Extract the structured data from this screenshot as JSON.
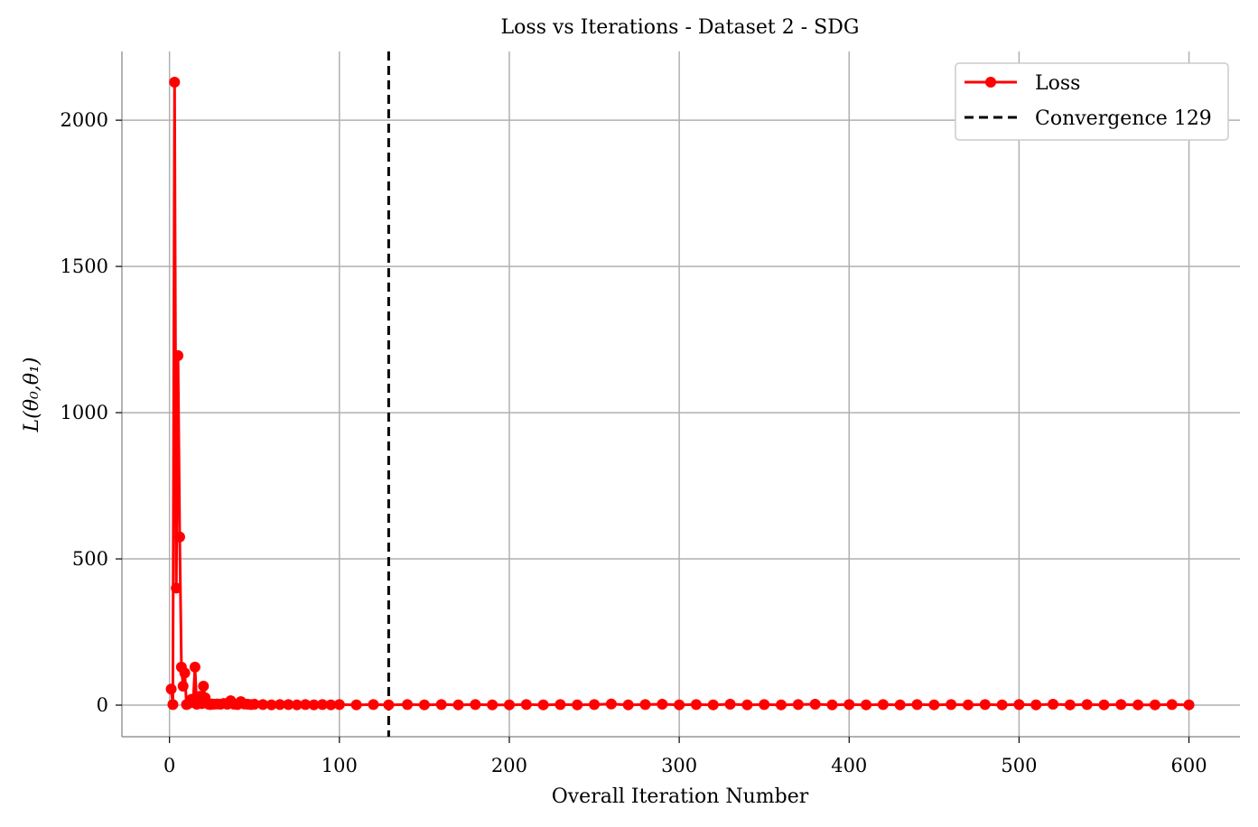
{
  "chart_data": {
    "type": "line",
    "title": "Loss vs Iterations - Dataset 2 - SDG",
    "xlabel": "Overall Iteration Number",
    "ylabel": "L(θ₀,θ₁)",
    "xlim": [
      -28,
      630
    ],
    "ylim": [
      -108,
      2235
    ],
    "xticks": [
      0,
      100,
      200,
      300,
      400,
      500,
      600
    ],
    "yticks": [
      0,
      500,
      1000,
      1500,
      2000
    ],
    "grid": true,
    "legend_position": "top-right",
    "series": [
      {
        "name": "Loss",
        "color": "#ff0000",
        "marker": "circle",
        "x": [
          1,
          2,
          3,
          4,
          5,
          6,
          7,
          8,
          9,
          10,
          11,
          12,
          13,
          14,
          15,
          16,
          17,
          18,
          19,
          20,
          21,
          22,
          23,
          24,
          25,
          26,
          28,
          30,
          32,
          34,
          36,
          38,
          40,
          42,
          44,
          46,
          48,
          50,
          55,
          60,
          65,
          70,
          75,
          80,
          85,
          90,
          95,
          100,
          110,
          120,
          129,
          140,
          150,
          160,
          170,
          180,
          190,
          200,
          210,
          220,
          230,
          240,
          250,
          260,
          270,
          280,
          290,
          300,
          310,
          320,
          330,
          340,
          350,
          360,
          370,
          380,
          390,
          400,
          410,
          420,
          430,
          440,
          450,
          460,
          470,
          480,
          490,
          500,
          510,
          520,
          530,
          540,
          550,
          560,
          570,
          580,
          590,
          600
        ],
        "y": [
          55,
          2,
          2130,
          400,
          1195,
          575,
          130,
          65,
          110,
          2,
          5,
          8,
          20,
          15,
          130,
          3,
          10,
          30,
          5,
          65,
          25,
          8,
          3,
          2,
          4,
          3,
          4,
          3,
          6,
          3,
          15,
          3,
          2,
          12,
          4,
          3,
          2,
          3,
          2,
          1,
          2,
          2,
          1,
          2,
          1,
          2,
          1,
          2,
          1,
          2,
          1,
          2,
          1,
          2,
          1,
          2,
          1,
          1,
          2,
          1,
          2,
          1,
          2,
          4,
          1,
          2,
          3,
          1,
          2,
          1,
          3,
          1,
          2,
          1,
          2,
          3,
          1,
          2,
          1,
          2,
          1,
          2,
          1,
          2,
          1,
          2,
          1,
          2,
          1,
          3,
          1,
          2,
          1,
          2,
          1,
          1,
          2,
          1
        ]
      },
      {
        "name": "Convergence 129",
        "color": "#000000",
        "style": "dashed",
        "vline": 129
      }
    ]
  }
}
